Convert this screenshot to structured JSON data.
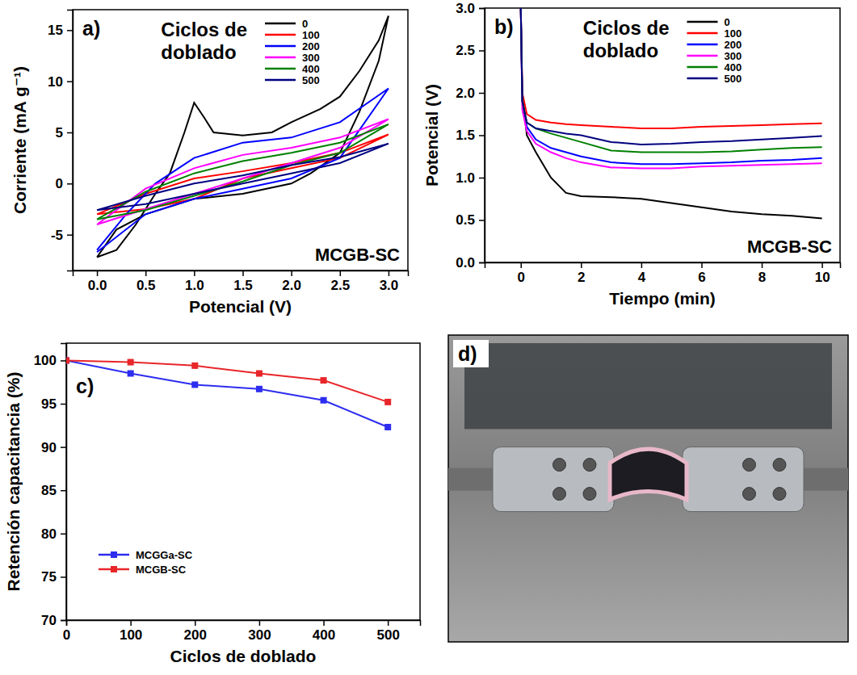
{
  "chart_data": [
    {
      "type": "line",
      "panel_label": "a)",
      "x_label": "Potencial (V)",
      "y_label": "Corriente (mA g⁻¹)",
      "legend_title": "Ciclos de doblado",
      "annotation": "MCGB-SC",
      "legend": "top",
      "grid": false,
      "xlim": [
        -0.25,
        3.2
      ],
      "xticks": [
        {
          "value": 0,
          "label": "0.0"
        },
        {
          "value": 0.5,
          "label": "0.5"
        },
        {
          "value": 1,
          "label": "1.0"
        },
        {
          "value": 1.5,
          "label": "1.5"
        },
        {
          "value": 2,
          "label": "2.0"
        },
        {
          "value": 2.5,
          "label": "2.5"
        },
        {
          "value": 3,
          "label": "3.0"
        }
      ],
      "ylim": [
        -8.5,
        17
      ],
      "yticks": [
        -5,
        0,
        5,
        10,
        15
      ],
      "series": [
        {
          "name": "0",
          "color": "#000000",
          "x": [
            0,
            0.2,
            0.4,
            0.6,
            0.75,
            0.9,
            1.0,
            1.1,
            1.2,
            1.5,
            1.8,
            2.0,
            2.3,
            2.5,
            2.7,
            2.9,
            3.0,
            2.9,
            2.7,
            2.5,
            2.2,
            2.0,
            1.5,
            1.0,
            0.5,
            0.2,
            0
          ],
          "values": [
            -7.2,
            -6.5,
            -4,
            -1,
            1,
            5,
            7.9,
            6.5,
            5,
            4.7,
            5,
            6,
            7.3,
            8.5,
            11,
            14,
            16.4,
            12,
            7,
            3,
            1,
            0,
            -1,
            -1.5,
            -3,
            -4.5,
            -7.2
          ]
        },
        {
          "name": "100",
          "color": "#ff0000",
          "x": [
            0,
            0.5,
            1.0,
            1.5,
            2.0,
            2.5,
            3.0,
            2.5,
            2.0,
            1.5,
            1.0,
            0.5,
            0
          ],
          "values": [
            -3,
            -1,
            0.5,
            1.2,
            2,
            3,
            4.8,
            2.5,
            1.5,
            0.5,
            -1.5,
            -2.5,
            -3
          ]
        },
        {
          "name": "200",
          "color": "#0000ff",
          "x": [
            0,
            0.3,
            0.6,
            1.0,
            1.5,
            2.0,
            2.5,
            3.0,
            2.5,
            2.0,
            1.5,
            1.0,
            0.5,
            0
          ],
          "values": [
            -6.5,
            -3,
            0,
            2.5,
            4,
            4.5,
            6,
            9.3,
            2.5,
            0.5,
            -0.5,
            -1.5,
            -3,
            -6.7
          ]
        },
        {
          "name": "300",
          "color": "#ff00ff",
          "x": [
            0,
            0.5,
            1.0,
            1.5,
            2.0,
            2.5,
            3.0,
            2.5,
            2.0,
            1.5,
            1.0,
            0.5,
            0
          ],
          "values": [
            -4,
            -0.5,
            1.5,
            2.8,
            3.5,
            4.5,
            6.3,
            3.5,
            2,
            0.5,
            -1,
            -2.5,
            -4
          ]
        },
        {
          "name": "400",
          "color": "#008000",
          "x": [
            0,
            0.5,
            1.0,
            1.5,
            2.0,
            2.5,
            3.0,
            2.5,
            2.0,
            1.5,
            1.0,
            0.5,
            0
          ],
          "values": [
            -3.5,
            -0.8,
            1,
            2.2,
            3,
            4,
            5.8,
            3,
            1.8,
            0.2,
            -1.2,
            -2.6,
            -3.5
          ]
        },
        {
          "name": "500",
          "color": "#000080",
          "x": [
            0,
            0.5,
            1.0,
            1.5,
            2.0,
            2.5,
            3.0,
            2.5,
            2.0,
            1.5,
            1.0,
            0.5,
            0
          ],
          "values": [
            -2.6,
            -1.2,
            0,
            0.8,
            1.8,
            2.6,
            3.9,
            2.0,
            1.0,
            0,
            -1.0,
            -2,
            -2.6
          ]
        }
      ]
    },
    {
      "type": "line",
      "panel_label": "b)",
      "x_label": "Tiempo (min)",
      "y_label": "Potencial (V)",
      "legend_title": "Ciclos de doblado",
      "annotation": "MCGB-SC",
      "legend": "top",
      "grid": false,
      "xlim": [
        -1.2,
        10.6
      ],
      "xticks": [
        0,
        2,
        4,
        6,
        8,
        10
      ],
      "ylim": [
        0,
        3
      ],
      "yticks": [
        {
          "value": 0,
          "label": "0.0"
        },
        {
          "value": 0.5,
          "label": "0.5"
        },
        {
          "value": 1,
          "label": "1.0"
        },
        {
          "value": 1.5,
          "label": "1.5"
        },
        {
          "value": 2,
          "label": "2.0"
        },
        {
          "value": 2.5,
          "label": "2.5"
        },
        {
          "value": 3,
          "label": "3.0"
        }
      ],
      "x": [
        0,
        0.05,
        0.2,
        0.5,
        1,
        1.5,
        2,
        3,
        4,
        5,
        6,
        7,
        8,
        9,
        10
      ],
      "series": [
        {
          "name": "0",
          "color": "#000000",
          "values": [
            3.0,
            2.0,
            1.5,
            1.3,
            1.0,
            0.82,
            0.78,
            0.77,
            0.75,
            0.7,
            0.65,
            0.6,
            0.57,
            0.55,
            0.52
          ]
        },
        {
          "name": "100",
          "color": "#ff0000",
          "values": [
            3.0,
            2.0,
            1.75,
            1.68,
            1.65,
            1.63,
            1.62,
            1.6,
            1.58,
            1.58,
            1.6,
            1.61,
            1.62,
            1.63,
            1.64
          ]
        },
        {
          "name": "200",
          "color": "#0000ff",
          "values": [
            3.0,
            1.9,
            1.6,
            1.45,
            1.35,
            1.3,
            1.25,
            1.18,
            1.16,
            1.16,
            1.17,
            1.18,
            1.2,
            1.21,
            1.23
          ]
        },
        {
          "name": "300",
          "color": "#ff00ff",
          "values": [
            3.0,
            1.8,
            1.55,
            1.4,
            1.3,
            1.23,
            1.18,
            1.12,
            1.11,
            1.11,
            1.13,
            1.14,
            1.15,
            1.16,
            1.17
          ]
        },
        {
          "name": "400",
          "color": "#008000",
          "values": [
            3.0,
            1.9,
            1.65,
            1.58,
            1.52,
            1.47,
            1.42,
            1.32,
            1.3,
            1.3,
            1.3,
            1.31,
            1.33,
            1.35,
            1.36
          ]
        },
        {
          "name": "500",
          "color": "#000080",
          "values": [
            3.0,
            1.9,
            1.65,
            1.58,
            1.55,
            1.52,
            1.5,
            1.42,
            1.39,
            1.4,
            1.42,
            1.43,
            1.45,
            1.47,
            1.49
          ]
        }
      ]
    },
    {
      "type": "line",
      "panel_label": "c)",
      "x_label": "Ciclos de doblado",
      "y_label": "Retención capacitancia (%)",
      "legend": "lower left",
      "grid": false,
      "marker": "square",
      "xlim": [
        0,
        550
      ],
      "xticks": [
        0,
        100,
        200,
        300,
        400,
        500
      ],
      "ylim": [
        70,
        102
      ],
      "yticks": [
        70,
        75,
        80,
        85,
        90,
        95,
        100
      ],
      "x": [
        0,
        100,
        200,
        300,
        400,
        500
      ],
      "series": [
        {
          "name": "MCGGa-SC",
          "color": "#2d2df0",
          "values": [
            100,
            98.5,
            97.2,
            96.7,
            95.4,
            92.3
          ]
        },
        {
          "name": "MCGB-SC",
          "color": "#e8262a",
          "values": [
            100,
            99.8,
            99.4,
            98.5,
            97.7,
            95.2
          ]
        }
      ]
    },
    {
      "type": "image",
      "panel_label": "d)"
    }
  ]
}
